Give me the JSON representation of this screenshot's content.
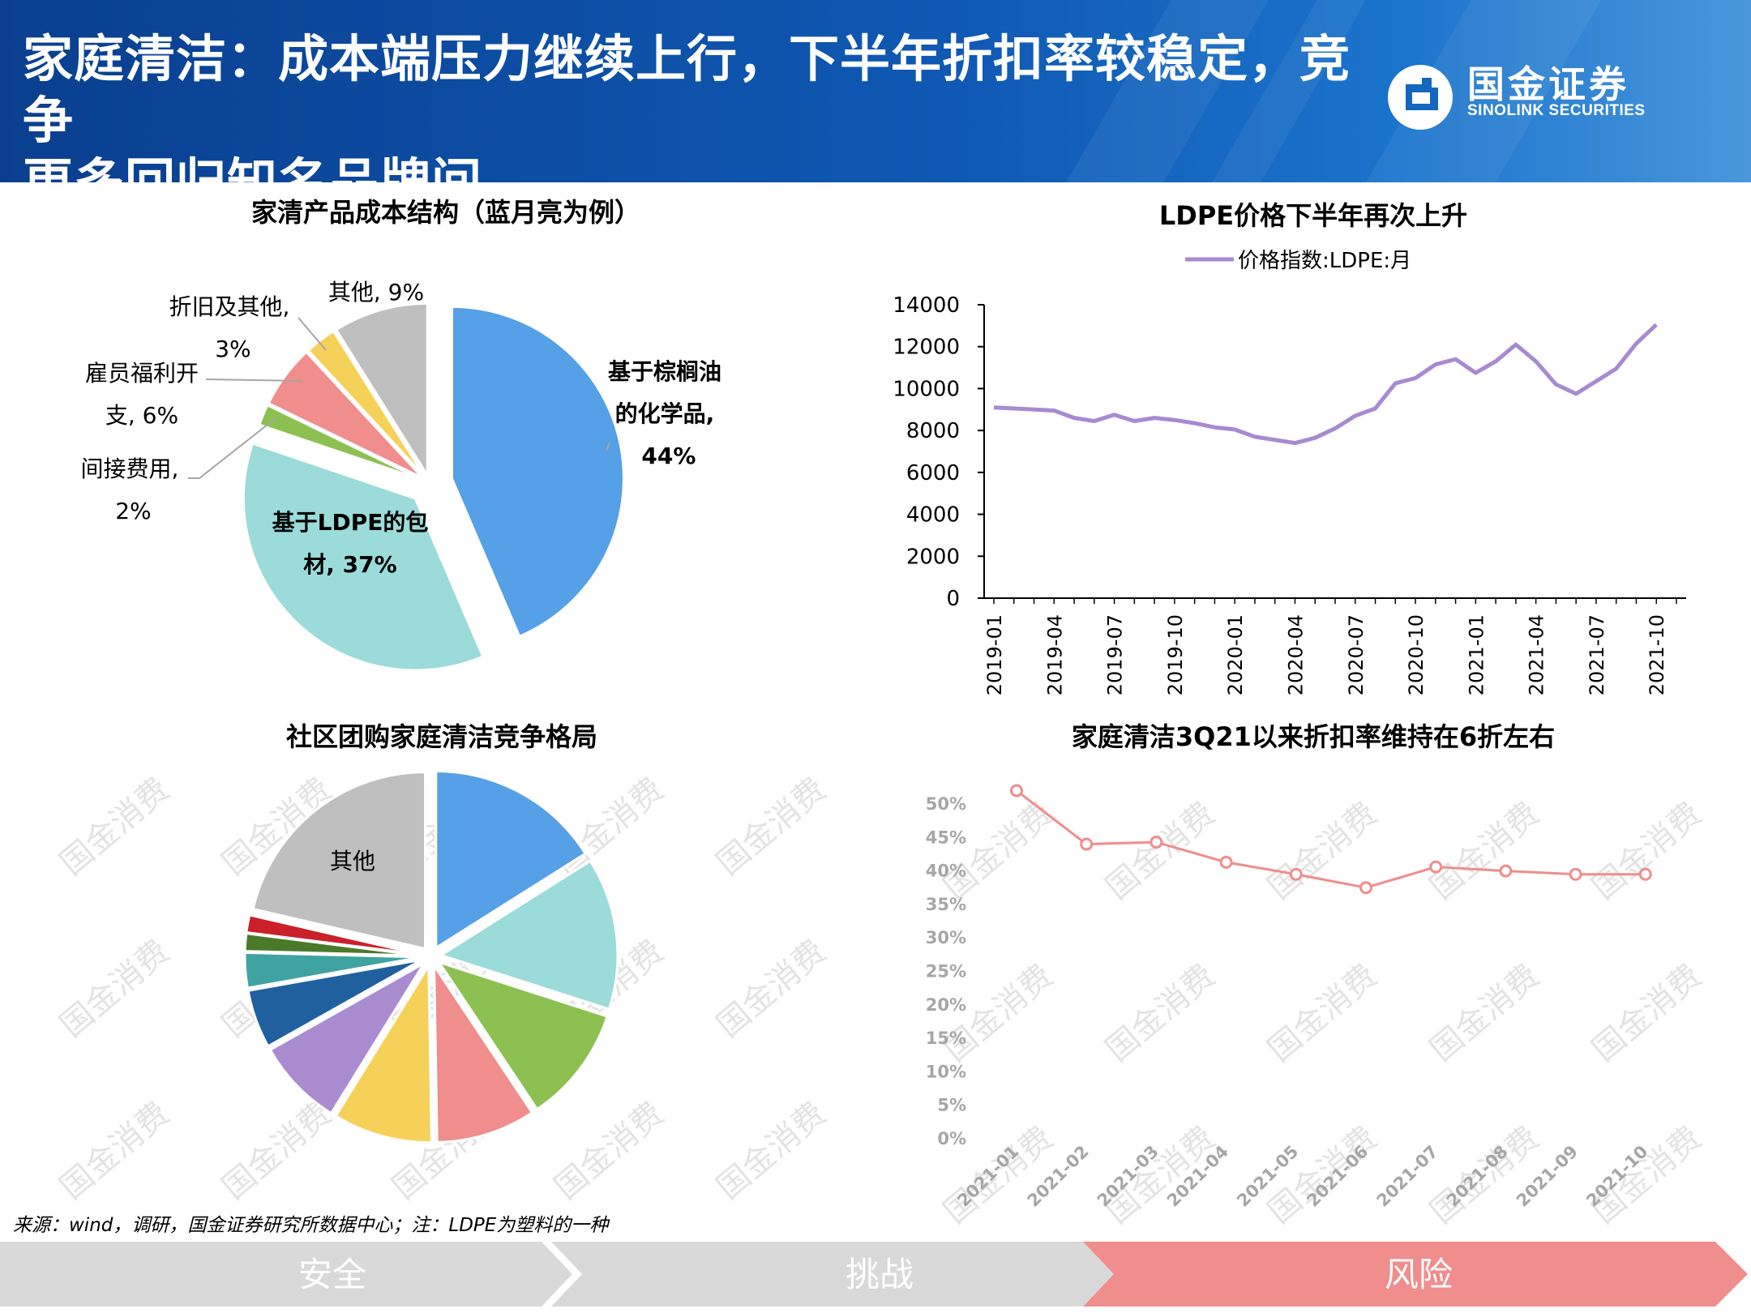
{
  "header": {
    "title_line1": "家庭清洁：成本端压力继续上行，下半年折扣率较稳定，竞争",
    "title_line2": "更多回归知名品牌间",
    "logo_cn": "国金证券",
    "logo_en": "SINOLINK SECURITIES"
  },
  "watermark": "国金消费",
  "chart_data": [
    {
      "type": "pie",
      "title": "家清产品成本结构（蓝月亮为例）",
      "slices": [
        {
          "label": "基于棕榈油的化学品, 44%",
          "value": 44,
          "color": "#55a0e6",
          "exploded": true
        },
        {
          "label": "基于LDPE的包材, 37%",
          "value": 37,
          "color": "#9bdbd9",
          "exploded": true
        },
        {
          "label": "间接费用, 2%",
          "value": 2,
          "color": "#8cc152"
        },
        {
          "label": "雇员福利开支, 6%",
          "value": 6,
          "color": "#f08d8d"
        },
        {
          "label": "折旧及其他, 3%",
          "value": 3,
          "color": "#f6d15a"
        },
        {
          "label": "其他, 9%",
          "value": 9,
          "color": "#bfbfbf"
        }
      ]
    },
    {
      "type": "line",
      "title": "LDPE价格下半年再次上升",
      "legend": "价格指数:LDPE:月",
      "legend_position": "top",
      "ylim": [
        0,
        14000
      ],
      "yticks": [
        0,
        2000,
        4000,
        6000,
        8000,
        10000,
        12000,
        14000
      ],
      "xticks": [
        "2019-01",
        "2019-04",
        "2019-07",
        "2019-10",
        "2020-01",
        "2020-04",
        "2020-07",
        "2020-10",
        "2021-01",
        "2021-04",
        "2021-07",
        "2021-10"
      ],
      "x": [
        "2019-01",
        "2019-02",
        "2019-03",
        "2019-04",
        "2019-05",
        "2019-06",
        "2019-07",
        "2019-08",
        "2019-09",
        "2019-10",
        "2019-11",
        "2019-12",
        "2020-01",
        "2020-02",
        "2020-03",
        "2020-04",
        "2020-05",
        "2020-06",
        "2020-07",
        "2020-08",
        "2020-09",
        "2020-10",
        "2020-11",
        "2020-12",
        "2021-01",
        "2021-02",
        "2021-03",
        "2021-04",
        "2021-05",
        "2021-06",
        "2021-07",
        "2021-08",
        "2021-09",
        "2021-10",
        "2021-11"
      ],
      "values": [
        9100,
        9050,
        9000,
        8950,
        8600,
        8450,
        8750,
        8450,
        8600,
        8500,
        8350,
        8150,
        8050,
        7700,
        7550,
        7400,
        7650,
        8100,
        8700,
        9050,
        10250,
        10500,
        11150,
        11400,
        10750,
        11300,
        12100,
        11300,
        10200,
        9750,
        10350,
        10950,
        12150,
        13050,
        null
      ],
      "color": "#a88ad1"
    },
    {
      "type": "pie",
      "title": "社区团购家庭清洁竞争格局",
      "slices": [
        {
          "label": "",
          "value": 15,
          "color": "#55a0e6"
        },
        {
          "label": "",
          "value": 13,
          "color": "#9bdbd9"
        },
        {
          "label": "",
          "value": 10,
          "color": "#8cc152"
        },
        {
          "label": "",
          "value": 8.5,
          "color": "#f08d8d"
        },
        {
          "label": "",
          "value": 8.5,
          "color": "#f6d15a"
        },
        {
          "label": "",
          "value": 7.5,
          "color": "#a98cd0"
        },
        {
          "label": "",
          "value": 5,
          "color": "#20609f"
        },
        {
          "label": "",
          "value": 3,
          "color": "#3fa3a1"
        },
        {
          "label": "",
          "value": 1.5,
          "color": "#4a7a29"
        },
        {
          "label": "",
          "value": 1.5,
          "color": "#c9202a"
        },
        {
          "label": "其他",
          "value": 20,
          "color": "#bfbfbf"
        }
      ]
    },
    {
      "type": "line",
      "title": "家庭清洁3Q21以来折扣率维持在6折左右",
      "ylim": [
        0,
        50
      ],
      "yticks": [
        "0%",
        "5%",
        "10%",
        "15%",
        "20%",
        "25%",
        "30%",
        "35%",
        "40%",
        "45%",
        "50%"
      ],
      "x": [
        "2021-01",
        "2021-02",
        "2021-03",
        "2021-04",
        "2021-05",
        "2021-06",
        "2021-07",
        "2021-08",
        "2021-09",
        "2021-10"
      ],
      "values": [
        52,
        44,
        44.3,
        41.3,
        39.5,
        37.5,
        40.6,
        40,
        39.5,
        39.5
      ],
      "color": "#f08d8d"
    }
  ],
  "footer": {
    "source": "来源：wind，调研，国金证券研究所数据中心；注：LDPE为塑料的一种",
    "steps": [
      "安全",
      "挑战",
      "风险"
    ]
  }
}
